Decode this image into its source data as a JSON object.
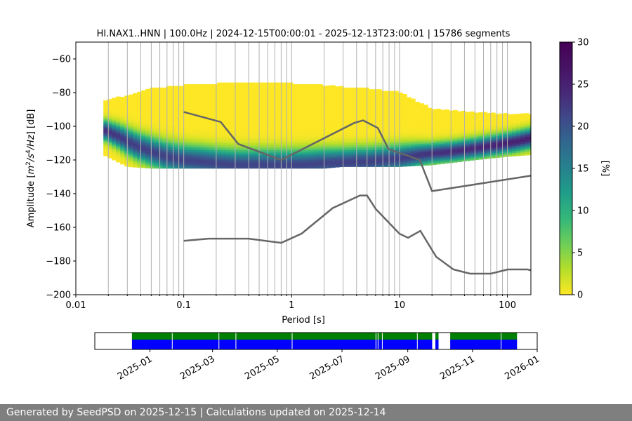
{
  "chart_data": [
    {
      "type": "heatmap",
      "title": "HI.NAX1..HNN | 100.0Hz | 2024-12-15T00:00:01 - 2025-12-13T23:00:01 | 15786 segments",
      "xlabel": "Period [s]",
      "ylabel": "Amplitude [m²/s⁴/Hz] [dB]",
      "ylabel_parts": {
        "before": "Amplitude [",
        "unit_m": "m",
        "exp_2": "2",
        "unit_s": "/s",
        "exp_4": "4",
        "unit_hz": "/Hz",
        "after": "] [dB]"
      },
      "x_scale": "log",
      "xlim": [
        0.01,
        165
      ],
      "ylim": [
        -200,
        -50
      ],
      "x_ticks": [
        0.01,
        0.1,
        1,
        10,
        100
      ],
      "x_tick_labels": [
        "0.01",
        "0.1",
        "1",
        "10",
        "100"
      ],
      "y_ticks": [
        -200,
        -180,
        -160,
        -140,
        -120,
        -100,
        -80,
        -60
      ],
      "y_tick_labels": [
        "−200",
        "−180",
        "−160",
        "−140",
        "−120",
        "−100",
        "−80",
        "−60"
      ],
      "grid": "x-major-minor",
      "colormap": "viridis_r",
      "colorbar": {
        "label": "[%]",
        "range": [
          0,
          30
        ],
        "ticks": [
          0,
          5,
          10,
          15,
          20,
          25,
          30
        ],
        "tick_labels": [
          "0",
          "5",
          "10",
          "15",
          "20",
          "25",
          "30"
        ]
      },
      "density_mode_curve": {
        "x": [
          0.018,
          0.025,
          0.035,
          0.05,
          0.07,
          0.1,
          0.15,
          0.2,
          0.3,
          0.5,
          0.8,
          1.2,
          2,
          3,
          4,
          5,
          7,
          10,
          15,
          20,
          30,
          50,
          80,
          120,
          165
        ],
        "y": [
          -102,
          -106,
          -111,
          -115,
          -118,
          -120,
          -121,
          -122,
          -123,
          -123,
          -123,
          -123,
          -122,
          -121.5,
          -121,
          -121,
          -120,
          -119,
          -117,
          -116,
          -115,
          -113,
          -111,
          -109,
          -107
        ]
      },
      "density_spread_band": {
        "x": [
          0.018,
          0.03,
          0.05,
          0.1,
          0.2,
          0.5,
          1,
          2,
          3,
          5,
          10,
          20,
          50,
          100,
          165
        ],
        "upper": [
          -85,
          -82,
          -78,
          -76,
          -75,
          -74,
          -75,
          -76,
          -77,
          -78,
          -80,
          -90,
          -92,
          -93,
          -93
        ],
        "lower": [
          -117,
          -124,
          -125,
          -125,
          -125,
          -125,
          -125,
          -125,
          -124,
          -124,
          -124,
          -123,
          -120,
          -118,
          -117
        ]
      },
      "high_noise_model": {
        "name": "",
        "x": [
          0.1,
          0.22,
          0.32,
          0.8,
          3.8,
          4.6,
          6.3,
          7.9,
          15.4,
          20,
          354.8
        ],
        "y": [
          -91.5,
          -97.4,
          -110.5,
          -120,
          -98,
          -96.5,
          -101,
          -113.5,
          -120,
          -138.5,
          -126
        ]
      },
      "low_noise_model": {
        "name": "",
        "x": [
          0.1,
          0.17,
          0.4,
          0.8,
          1.24,
          2.4,
          4.3,
          5,
          6,
          10,
          12,
          15.6,
          21.9,
          31.6,
          45,
          70,
          101,
          154,
          165
        ],
        "y": [
          -168,
          -166.7,
          -166.7,
          -169.2,
          -163.7,
          -148.6,
          -141.1,
          -141.1,
          -149,
          -163.8,
          -166.2,
          -162.1,
          -177.5,
          -185,
          -187.5,
          -187.5,
          -185,
          -185,
          -185.5
        ]
      },
      "curve_color": "#666666"
    },
    {
      "type": "timeline",
      "x_ticks": [
        "2025-01",
        "2025-03",
        "2025-05",
        "2025-07",
        "2025-09",
        "2025-11",
        "2026-01"
      ],
      "xlim": [
        "2024-11-10",
        "2026-01-01"
      ],
      "coverage_start": "2024-12-15",
      "coverage_end": "2025-12-13",
      "gaps": [
        {
          "start": "2025-09-24",
          "end": "2025-09-27"
        },
        {
          "start": "2025-09-30",
          "end": "2025-10-11"
        }
      ],
      "ticks_in_bars": [
        "2025-01-22",
        "2025-03-07",
        "2025-03-23",
        "2025-05-15",
        "2025-08-02",
        "2025-08-04",
        "2025-08-08",
        "2025-09-10",
        "2025-11-28"
      ],
      "colors": {
        "upper": "#008000",
        "lower": "#0000ff"
      }
    }
  ],
  "footer": "Generated by SeedPSD on 2025-12-15 | Calculations updated on 2025-12-14"
}
